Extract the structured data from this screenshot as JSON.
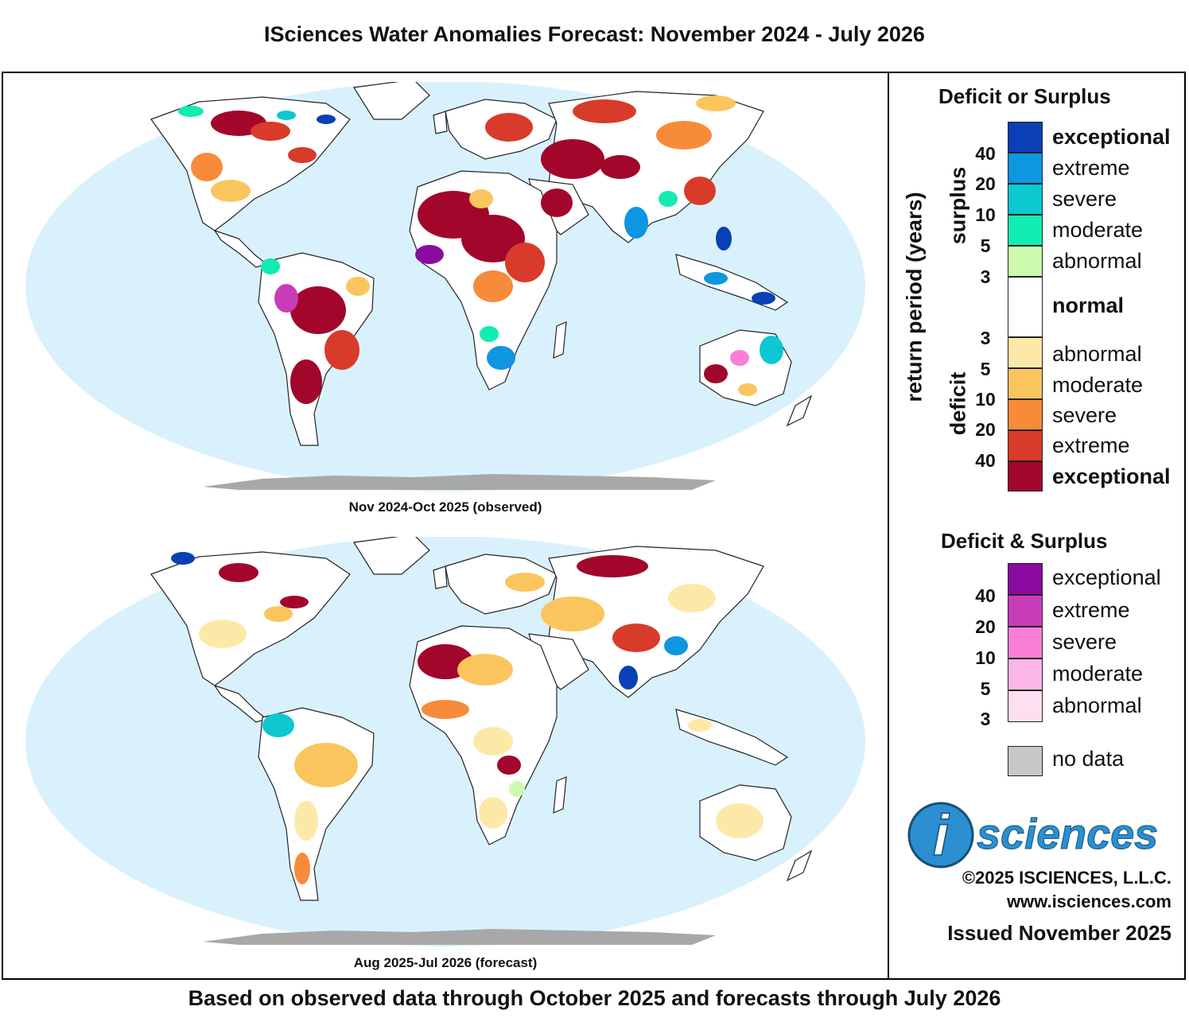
{
  "title": "ISciences Water Anomalies Forecast: November 2024 - July 2026",
  "footer": "Based on observed data through October 2025 and forecasts through July 2026",
  "maps": [
    {
      "caption": "Nov 2024-Oct 2025 (observed)"
    },
    {
      "caption": "Aug 2025-Jul 2026 (forecast)"
    }
  ],
  "legend": {
    "deficit_surplus_title": "Deficit or Surplus",
    "axis_label": "return period (years)",
    "surplus_label": "surplus",
    "deficit_label": "deficit",
    "surplus_classes": [
      {
        "label": "exceptional",
        "color": "#0b3fb5"
      },
      {
        "label": "extreme",
        "color": "#0e96e0"
      },
      {
        "label": "severe",
        "color": "#0dc7d1"
      },
      {
        "label": "moderate",
        "color": "#12ebb2"
      },
      {
        "label": "abnormal",
        "color": "#cdfbad"
      }
    ],
    "normal": {
      "label": "normal",
      "color": "#ffffff"
    },
    "deficit_classes": [
      {
        "label": "abnormal",
        "color": "#fde9a7"
      },
      {
        "label": "moderate",
        "color": "#fbc55e"
      },
      {
        "label": "severe",
        "color": "#f78b3a"
      },
      {
        "label": "extreme",
        "color": "#d83b2a"
      },
      {
        "label": "exceptional",
        "color": "#a2062b"
      }
    ],
    "surplus_ticks": [
      "40",
      "20",
      "10",
      "5",
      "3"
    ],
    "deficit_ticks": [
      "3",
      "5",
      "10",
      "20",
      "40"
    ],
    "both_title": "Deficit & Surplus",
    "both_classes": [
      {
        "label": "exceptional",
        "color": "#8b0aa0"
      },
      {
        "label": "extreme",
        "color": "#c83cb8"
      },
      {
        "label": "severe",
        "color": "#fa80d6"
      },
      {
        "label": "moderate",
        "color": "#fbb6e8"
      },
      {
        "label": "abnormal",
        "color": "#fde0f0"
      }
    ],
    "both_ticks": [
      "40",
      "20",
      "10",
      "5",
      "3"
    ],
    "no_data": {
      "label": "no data",
      "color": "#c8c8c8"
    }
  },
  "brand": {
    "logo_letter": "i",
    "logo_text": "sciences",
    "copyright": "©2025 ISCIENCES, L.L.C.",
    "website": "www.isciences.com",
    "issued": "Issued November 2025"
  },
  "colors": {
    "ocean": "#d9f1fc",
    "land_normal": "#ffffff",
    "antarctica": "#a8a8a8",
    "border": "#222222",
    "logo_blue": "#2b8fd1"
  }
}
